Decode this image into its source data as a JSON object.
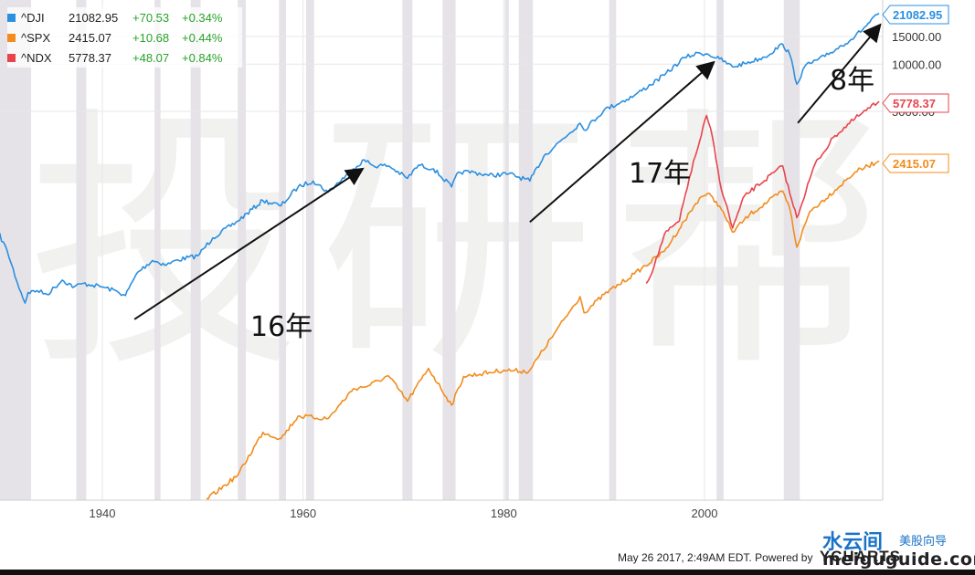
{
  "chart_data": {
    "type": "line",
    "scale": "log",
    "x_ticks": [
      "1940",
      "1960",
      "1980",
      "2000"
    ],
    "y_ticks": [
      "15000.00",
      "10000.00",
      "5000.00"
    ],
    "grid": true,
    "legend_position": "top-left",
    "legend": [
      {
        "symbol": "^DJI",
        "last": "21082.95",
        "change": "+70.53",
        "pct": "+0.34%",
        "color": "#2b8fe0"
      },
      {
        "symbol": "^SPX",
        "last": "2415.07",
        "change": "+10.68",
        "pct": "+0.44%",
        "color": "#f28c1e"
      },
      {
        "symbol": "^NDX",
        "last": "5778.37",
        "change": "+48.07",
        "pct": "+0.84%",
        "color": "#e8444c"
      }
    ],
    "price_labels": [
      {
        "text": "21082.95",
        "color": "#2b8fe0"
      },
      {
        "text": "5778.37",
        "color": "#e8444c"
      },
      {
        "text": "2415.07",
        "color": "#f28c1e"
      }
    ],
    "series": [
      {
        "name": "^DJI",
        "color": "#2b8fe0",
        "x": [
          1929.6,
          1930.5,
          1931.5,
          1932.3,
          1932.6,
          1933.5,
          1934.5,
          1936,
          1937.2,
          1938.1,
          1939,
          1940,
          1941.5,
          1942.3,
          1943.5,
          1945,
          1946.4,
          1947.5,
          1949.5,
          1951,
          1953.5,
          1956,
          1957.8,
          1959.5,
          1961,
          1962.5,
          1965,
          1966.1,
          1967,
          1968.5,
          1970.4,
          1971.5,
          1973,
          1974.8,
          1975.5,
          1977,
          1978.5,
          1980.5,
          1982.6,
          1984,
          1987.6,
          1988,
          1990,
          1993,
          1996,
          1998,
          1999.5,
          2000.3,
          2001.5,
          2002.8,
          2004,
          2006,
          2007.8,
          2008.5,
          2009.2,
          2010,
          2012,
          2015,
          2017.4
        ],
        "y": [
          850,
          650,
          410,
          300,
          350,
          360,
          340,
          420,
          380,
          400,
          390,
          380,
          355,
          335,
          470,
          560,
          525,
          565,
          600,
          780,
          1000,
          1350,
          1250,
          1650,
          1800,
          1530,
          2150,
          2450,
          2250,
          2250,
          1870,
          2270,
          2150,
          1650,
          2050,
          2050,
          1950,
          2000,
          1800,
          2600,
          4200,
          3800,
          5100,
          6300,
          8500,
          11000,
          11800,
          11600,
          10800,
          9600,
          10100,
          11100,
          13400,
          11500,
          7450,
          9700,
          11200,
          15000,
          21082.95
        ]
      },
      {
        "name": "^SPX",
        "color": "#f28c1e",
        "x": [
          1950,
          1953.5,
          1956,
          1957.8,
          1959.5,
          1962.5,
          1965,
          1966.5,
          1968.5,
          1970.4,
          1972.5,
          1974.8,
          1976,
          1980,
          1982.5,
          1985,
          1987.6,
          1988,
          1990,
          1993,
          1996,
          1998,
          1999.5,
          2000.3,
          2001.5,
          2002.8,
          2004.5,
          2007.8,
          2008.5,
          2009.2,
          2010.5,
          2013,
          2015,
          2017.4
        ],
        "y": [
          16,
          24,
          45,
          41,
          57,
          55,
          85,
          89,
          103,
          71,
          115,
          67,
          102,
          112,
          110,
          190,
          330,
          260,
          340,
          460,
          640,
          1000,
          1400,
          1500,
          1250,
          850,
          1100,
          1550,
          1200,
          680,
          1150,
          1570,
          2050,
          2415.07
        ]
      },
      {
        "name": "^NDX",
        "color": "#e8444c",
        "x": [
          1994.2,
          1995,
          1996,
          1997.5,
          1998.5,
          1999.5,
          2000.2,
          2000.8,
          2001.5,
          2002.8,
          2004,
          2007.8,
          2008.5,
          2009.2,
          2011,
          2013,
          2015,
          2017.4
        ],
        "y": [
          400,
          520,
          820,
          1000,
          1900,
          3200,
          4700,
          3400,
          1800,
          900,
          1450,
          2240,
          1500,
          1050,
          2300,
          3500,
          4500,
          5778.37
        ]
      }
    ],
    "annotations": [
      "16年",
      "17年",
      "8年"
    ]
  },
  "watermark": "投研帮",
  "footer": {
    "timestamp": "May 26 2017, 2:49AM EDT.",
    "powered": "Powered by",
    "brand": "YCHARTS"
  },
  "site_logo": {
    "name_cn": "水云间",
    "tagline_cn": "美股向导",
    "url": "meiguguide.com"
  }
}
